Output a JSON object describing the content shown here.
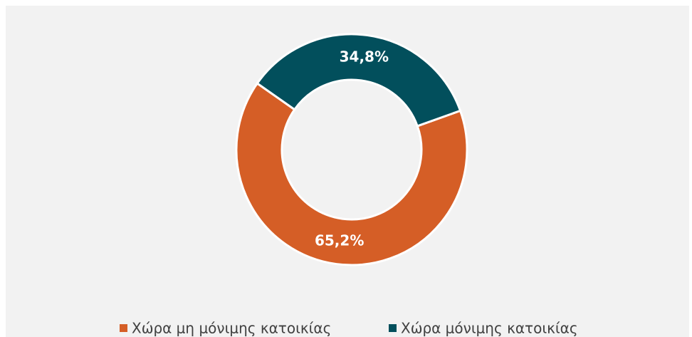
{
  "chart_data": {
    "type": "pie",
    "donut": true,
    "categories": [
      "Χώρα μη μόνιμης κατοικίας",
      "Χώρα μόνιμης κατοικίας"
    ],
    "values": [
      65.2,
      34.8
    ],
    "value_labels": [
      "65,2%",
      "34,8%"
    ],
    "colors": [
      "#d55e26",
      "#024f5c"
    ],
    "legend": "bottom"
  }
}
